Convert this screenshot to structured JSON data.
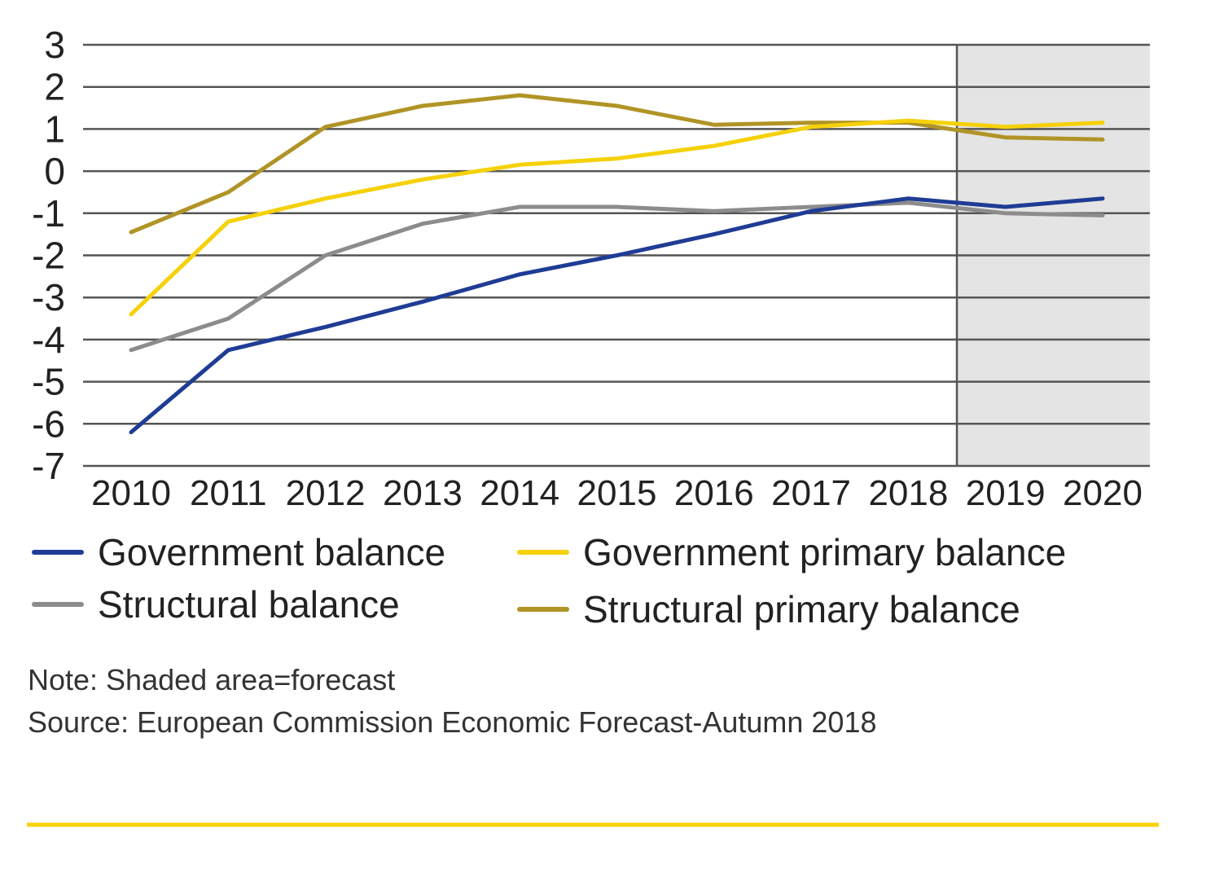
{
  "chart_data": {
    "type": "line",
    "title": "",
    "xlabel": "",
    "ylabel": "",
    "categories": [
      "2010",
      "2011",
      "2012",
      "2013",
      "2014",
      "2015",
      "2016",
      "2017",
      "2018",
      "2019",
      "2020"
    ],
    "ylim": [
      -7,
      3
    ],
    "yticks": [
      3,
      2,
      1,
      0,
      -1,
      -2,
      -3,
      -4,
      -5,
      -6,
      -7
    ],
    "grid": true,
    "forecast_shading": {
      "from_after": "2018",
      "to": "2020",
      "color": "#e4e4e4"
    },
    "legend_placement": "bottom",
    "series": [
      {
        "name": "Government balance",
        "color": "#1f3c95",
        "values": [
          -6.2,
          -4.25,
          -3.7,
          -3.1,
          -2.45,
          -2.0,
          -1.5,
          -0.95,
          -0.65,
          -0.85,
          -0.65
        ]
      },
      {
        "name": "Government primary balance",
        "color": "#f5d10a",
        "values": [
          -3.4,
          -1.2,
          -0.65,
          -0.2,
          0.15,
          0.3,
          0.6,
          1.05,
          1.2,
          1.05,
          1.15
        ]
      },
      {
        "name": "Structural balance",
        "color": "#8c8c8c",
        "values": [
          -4.25,
          -3.5,
          -2.0,
          -1.25,
          -0.85,
          -0.85,
          -0.95,
          -0.85,
          -0.75,
          -1.0,
          -1.05
        ]
      },
      {
        "name": "Structural primary balance",
        "color": "#b09426",
        "values": [
          -1.45,
          -0.5,
          1.05,
          1.55,
          1.8,
          1.55,
          1.1,
          1.15,
          1.15,
          0.8,
          0.75
        ]
      }
    ]
  },
  "note": "Note: Shaded area=forecast",
  "source": "Source: European Commission Economic Forecast-Autumn 2018",
  "colors": {
    "gridline": "#555555",
    "forecast_bg": "#e4e4e4",
    "bottom_rule": "#fcd20e"
  }
}
